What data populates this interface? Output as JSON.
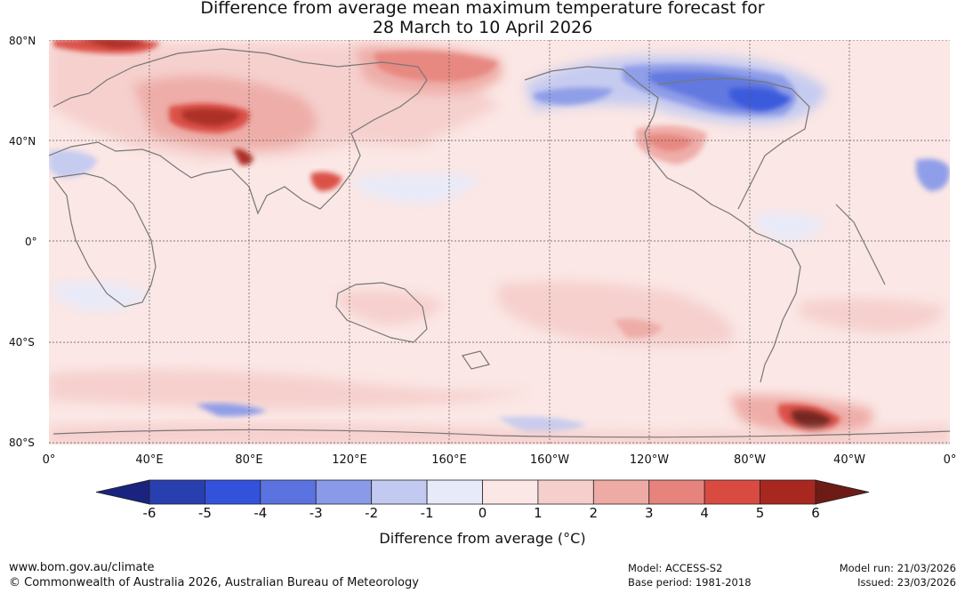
{
  "title": {
    "line1": "Difference from average mean maximum temperature forecast for",
    "line2": "28 March to 10 April 2026"
  },
  "map": {
    "lat_labels": [
      "80°N",
      "40°N",
      "0°",
      "40°S",
      "80°S"
    ],
    "lon_labels": [
      "0°",
      "40°E",
      "80°E",
      "120°E",
      "160°E",
      "160°W",
      "120°W",
      "80°W",
      "40°W",
      "0°"
    ],
    "anomaly_regions": [
      {
        "region": "Siberia / central Asia",
        "anomaly_c": 5
      },
      {
        "region": "Tibetan plateau",
        "anomaly_c": 5
      },
      {
        "region": "eastern Siberia",
        "anomaly_c": 4
      },
      {
        "region": "northern Canada",
        "anomaly_c": -4
      },
      {
        "region": "Alaska",
        "anomaly_c": -3
      },
      {
        "region": "western United States",
        "anomaly_c": 3
      },
      {
        "region": "southern Atlantic near South America",
        "anomaly_c": 5
      }
    ]
  },
  "legend": {
    "ticks": [
      "-6",
      "-5",
      "-4",
      "-3",
      "-2",
      "-1",
      "0",
      "1",
      "2",
      "3",
      "4",
      "5",
      "6"
    ],
    "colors": [
      "#1a237e",
      "#283fb0",
      "#3352dc",
      "#5a73e0",
      "#8a9ae8",
      "#c3caf1",
      "#e7eaf9",
      "#fbe7e5",
      "#f5cfcc",
      "#eeaaa5",
      "#e6837c",
      "#d94a40",
      "#a8271f",
      "#6e1a16"
    ],
    "label": "Difference from average (°C)"
  },
  "footer": {
    "url": "www.bom.gov.au/climate",
    "copyright": "© Commonwealth of Australia 2026, Australian Bureau of Meteorology",
    "model": "Model: ACCESS-S2",
    "base_period": "Base period: 1981-2018",
    "model_run": "Model run: 21/03/2026",
    "issued": "Issued: 23/03/2026"
  }
}
